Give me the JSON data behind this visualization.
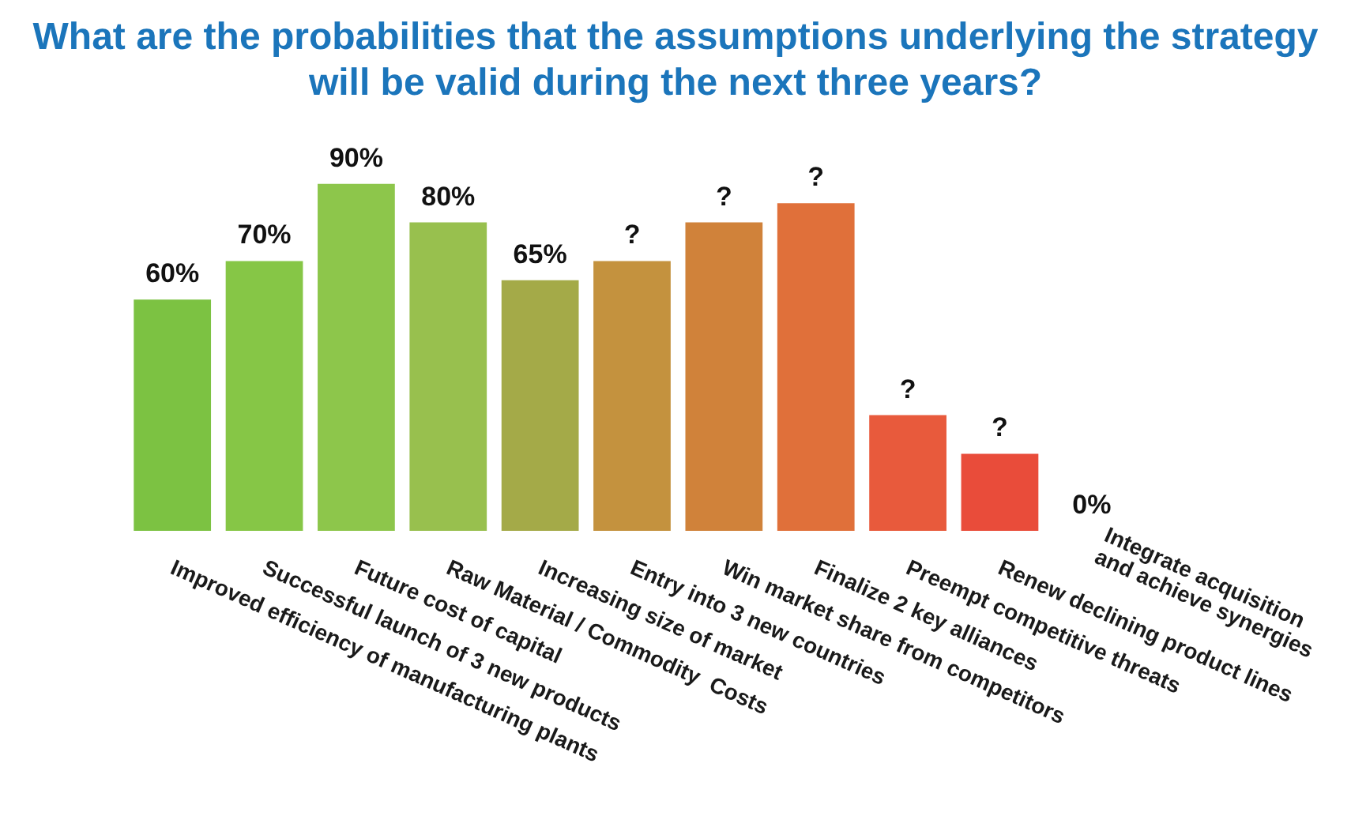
{
  "chart_data": {
    "type": "bar",
    "title": "What are the probabilities that the assumptions underlying the strategy will be valid during the next three years?",
    "categories": [
      "Improved efficiency of manufacturing plants",
      "Successful launch of 3 new products",
      "Future cost of capital",
      "Raw Material / Commodity  Costs",
      "Increasing size of market",
      "Entry into 3 new countries",
      "Win market share from competitors",
      "Finalize 2 key alliances",
      "Preempt competitive threats",
      "Renew declining product lines",
      "Integrate acquisition and achieve synergies"
    ],
    "values": [
      60,
      70,
      90,
      80,
      65,
      70,
      80,
      85,
      30,
      20,
      0
    ],
    "value_labels": [
      "60%",
      "70%",
      "90%",
      "80%",
      "65%",
      "?",
      "?",
      "?",
      "?",
      "?",
      "0%"
    ],
    "colors": [
      "#7cc242",
      "#86c646",
      "#8dc64b",
      "#98c04e",
      "#a4aa48",
      "#c4923e",
      "#d0823a",
      "#e0703a",
      "#e85a3c",
      "#e94c3a",
      "#e8412e"
    ]
  }
}
